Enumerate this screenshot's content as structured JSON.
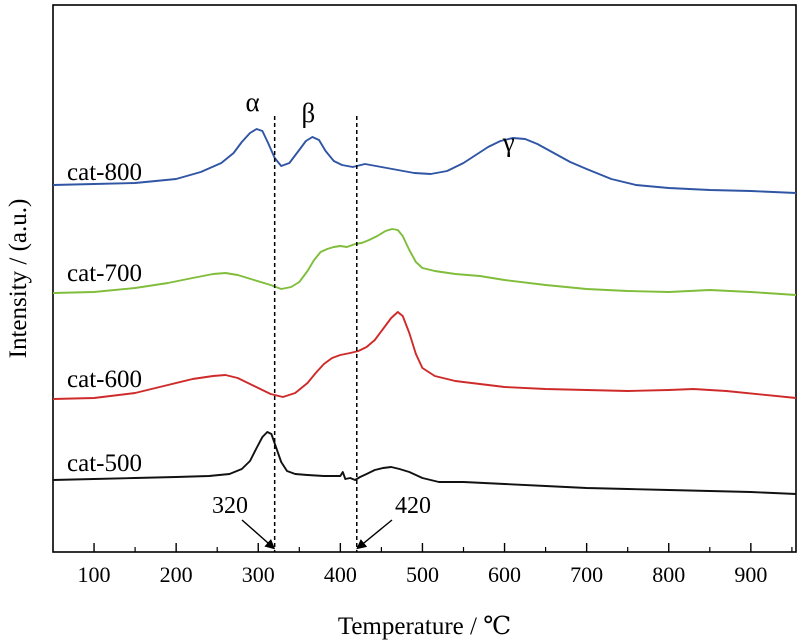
{
  "chart_data": {
    "type": "line",
    "xlabel": "Temperature / ℃",
    "ylabel": "Intensity / (a.u.)",
    "xlim": [
      50,
      955
    ],
    "xticks": [
      100,
      200,
      300,
      400,
      500,
      600,
      700,
      800,
      900
    ],
    "grid": false,
    "y_ticks_labeled": false,
    "series": [
      {
        "name": "cat-800",
        "color": "#2f55a4",
        "points": [
          [
            50,
            185
          ],
          [
            100,
            184
          ],
          [
            150,
            183
          ],
          [
            200,
            179
          ],
          [
            230,
            172
          ],
          [
            255,
            163
          ],
          [
            270,
            153
          ],
          [
            280,
            142
          ],
          [
            290,
            133
          ],
          [
            298,
            129
          ],
          [
            305,
            131
          ],
          [
            312,
            143
          ],
          [
            320,
            158
          ],
          [
            328,
            166
          ],
          [
            338,
            163
          ],
          [
            348,
            152
          ],
          [
            358,
            141
          ],
          [
            366,
            137
          ],
          [
            374,
            140
          ],
          [
            382,
            151
          ],
          [
            392,
            161
          ],
          [
            402,
            165
          ],
          [
            415,
            167
          ],
          [
            430,
            164
          ],
          [
            450,
            167
          ],
          [
            470,
            170
          ],
          [
            490,
            173
          ],
          [
            510,
            174
          ],
          [
            530,
            171
          ],
          [
            550,
            163
          ],
          [
            565,
            155
          ],
          [
            580,
            147
          ],
          [
            595,
            141
          ],
          [
            610,
            138
          ],
          [
            625,
            139
          ],
          [
            640,
            144
          ],
          [
            660,
            153
          ],
          [
            680,
            162
          ],
          [
            700,
            169
          ],
          [
            730,
            179
          ],
          [
            760,
            185
          ],
          [
            800,
            188
          ],
          [
            850,
            190
          ],
          [
            900,
            191
          ],
          [
            955,
            193
          ]
        ]
      },
      {
        "name": "cat-700",
        "color": "#7fbd3a",
        "points": [
          [
            50,
            293
          ],
          [
            100,
            292
          ],
          [
            150,
            288
          ],
          [
            190,
            283
          ],
          [
            220,
            278
          ],
          [
            245,
            274
          ],
          [
            260,
            273
          ],
          [
            275,
            275
          ],
          [
            295,
            280
          ],
          [
            315,
            285
          ],
          [
            328,
            289
          ],
          [
            340,
            287
          ],
          [
            350,
            282
          ],
          [
            360,
            271
          ],
          [
            368,
            260
          ],
          [
            376,
            252
          ],
          [
            384,
            249
          ],
          [
            392,
            247
          ],
          [
            400,
            246
          ],
          [
            408,
            247
          ],
          [
            418,
            244
          ],
          [
            426,
            243
          ],
          [
            435,
            240
          ],
          [
            445,
            236
          ],
          [
            455,
            231
          ],
          [
            463,
            229
          ],
          [
            470,
            230
          ],
          [
            476,
            236
          ],
          [
            484,
            250
          ],
          [
            492,
            262
          ],
          [
            500,
            268
          ],
          [
            515,
            271
          ],
          [
            540,
            274
          ],
          [
            570,
            276
          ],
          [
            600,
            280
          ],
          [
            650,
            285
          ],
          [
            700,
            289
          ],
          [
            750,
            291
          ],
          [
            800,
            292
          ],
          [
            850,
            290
          ],
          [
            900,
            292
          ],
          [
            955,
            295
          ]
        ]
      },
      {
        "name": "cat-600",
        "color": "#cf2a2a",
        "points": [
          [
            50,
            399
          ],
          [
            100,
            398
          ],
          [
            150,
            393
          ],
          [
            190,
            385
          ],
          [
            220,
            379
          ],
          [
            245,
            376
          ],
          [
            260,
            375
          ],
          [
            275,
            378
          ],
          [
            295,
            386
          ],
          [
            315,
            394
          ],
          [
            330,
            397
          ],
          [
            345,
            393
          ],
          [
            360,
            383
          ],
          [
            370,
            373
          ],
          [
            380,
            364
          ],
          [
            390,
            358
          ],
          [
            400,
            355
          ],
          [
            412,
            353
          ],
          [
            422,
            351
          ],
          [
            432,
            347
          ],
          [
            442,
            340
          ],
          [
            452,
            329
          ],
          [
            462,
            318
          ],
          [
            470,
            312
          ],
          [
            476,
            316
          ],
          [
            484,
            333
          ],
          [
            492,
            354
          ],
          [
            500,
            368
          ],
          [
            515,
            376
          ],
          [
            540,
            381
          ],
          [
            570,
            384
          ],
          [
            600,
            387
          ],
          [
            650,
            389
          ],
          [
            700,
            390
          ],
          [
            750,
            391
          ],
          [
            800,
            390
          ],
          [
            830,
            389
          ],
          [
            870,
            391
          ],
          [
            955,
            398
          ]
        ]
      },
      {
        "name": "cat-500",
        "color": "#111111",
        "points": [
          [
            50,
            480
          ],
          [
            100,
            479
          ],
          [
            150,
            478
          ],
          [
            200,
            477
          ],
          [
            240,
            476
          ],
          [
            265,
            474
          ],
          [
            280,
            469
          ],
          [
            290,
            461
          ],
          [
            298,
            448
          ],
          [
            305,
            437
          ],
          [
            311,
            432
          ],
          [
            316,
            434
          ],
          [
            322,
            448
          ],
          [
            328,
            462
          ],
          [
            335,
            471
          ],
          [
            345,
            474
          ],
          [
            360,
            475
          ],
          [
            380,
            476
          ],
          [
            400,
            476
          ],
          [
            403,
            472
          ],
          [
            406,
            479
          ],
          [
            412,
            478
          ],
          [
            418,
            480
          ],
          [
            424,
            477
          ],
          [
            432,
            474
          ],
          [
            442,
            470
          ],
          [
            452,
            468
          ],
          [
            462,
            467
          ],
          [
            472,
            469
          ],
          [
            484,
            472
          ],
          [
            500,
            478
          ],
          [
            520,
            482
          ],
          [
            550,
            482
          ],
          [
            600,
            484
          ],
          [
            650,
            486
          ],
          [
            700,
            488
          ],
          [
            750,
            489
          ],
          [
            800,
            490
          ],
          [
            850,
            491
          ],
          [
            900,
            492
          ],
          [
            955,
            494
          ]
        ]
      }
    ],
    "peak_labels": [
      {
        "label": "α",
        "x": 298
      },
      {
        "label": "β",
        "x": 366
      },
      {
        "label": "γ",
        "x": 610
      }
    ],
    "reference_lines": [
      {
        "x": 320,
        "label": "320"
      },
      {
        "x": 420,
        "label": "420"
      }
    ]
  }
}
